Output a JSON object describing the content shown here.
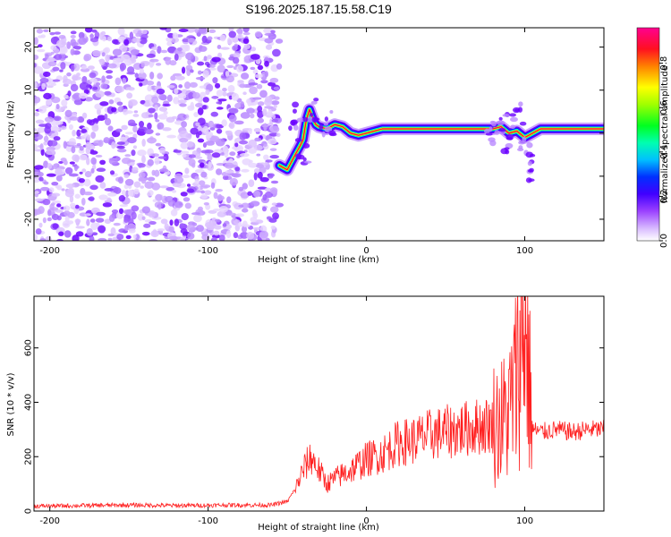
{
  "title": "S196.2025.187.15.58.C19",
  "chart_data": [
    {
      "type": "heatmap",
      "xlabel": "Height of straight line (km)",
      "ylabel": "Frequency (Hz)",
      "xlim": [
        -210,
        150
      ],
      "ylim": [
        -25,
        24.5
      ],
      "xticks": [
        -200,
        -100,
        0,
        100
      ],
      "yticks": [
        -20,
        -10,
        0,
        10,
        20
      ],
      "colorbar": {
        "label": "Normalized spectral amplitude",
        "range": [
          0,
          0.96
        ],
        "ticks": [
          0.0,
          0.2,
          0.4,
          0.6,
          0.8
        ],
        "colors": [
          "#ffffff",
          "#b070ff",
          "#6000ff",
          "#0000ff",
          "#00e0ff",
          "#00ff40",
          "#ffff00",
          "#ff4000",
          "#ff0080"
        ]
      },
      "noise_region": {
        "x": [
          -210,
          -55
        ],
        "y": [
          -25,
          24.5
        ]
      },
      "ridge": {
        "x": [
          -55,
          -50,
          -45,
          -42,
          -40,
          -38,
          -36,
          -34,
          -32,
          -30,
          -25,
          -20,
          -15,
          -10,
          -5,
          0,
          5,
          10,
          20,
          40,
          60,
          80,
          85,
          90,
          95,
          100,
          105,
          110,
          130,
          150
        ],
        "y": [
          -7.5,
          -8.5,
          -5,
          -3,
          -1.5,
          3,
          5.5,
          3.5,
          2,
          1.5,
          1,
          2,
          1.5,
          0,
          -0.5,
          0,
          0.5,
          1,
          1,
          1,
          1,
          1,
          1.5,
          0,
          0.5,
          -1,
          0,
          1,
          1,
          1
        ]
      }
    },
    {
      "type": "line",
      "xlabel": "Height of straight line (km)",
      "ylabel": "SNR (10 * v/v)",
      "xlim": [
        -210,
        150
      ],
      "ylim": [
        0,
        790
      ],
      "xticks": [
        -200,
        -100,
        0,
        100
      ],
      "yticks": [
        0,
        200,
        400,
        600
      ],
      "series": [
        {
          "color": "#ff2020",
          "x": [
            -210,
            -180,
            -150,
            -120,
            -90,
            -60,
            -50,
            -45,
            -40,
            -35,
            -30,
            -25,
            -20,
            -10,
            0,
            10,
            20,
            30,
            40,
            50,
            60,
            70,
            80,
            85,
            90,
            95,
            98,
            100,
            105,
            110,
            120,
            130,
            140,
            150
          ],
          "y": [
            18,
            20,
            22,
            20,
            22,
            22,
            35,
            80,
            150,
            200,
            150,
            100,
            120,
            150,
            190,
            210,
            250,
            260,
            280,
            290,
            300,
            310,
            320,
            330,
            360,
            500,
            650,
            700,
            300,
            290,
            300,
            290,
            300,
            300
          ]
        }
      ]
    }
  ]
}
